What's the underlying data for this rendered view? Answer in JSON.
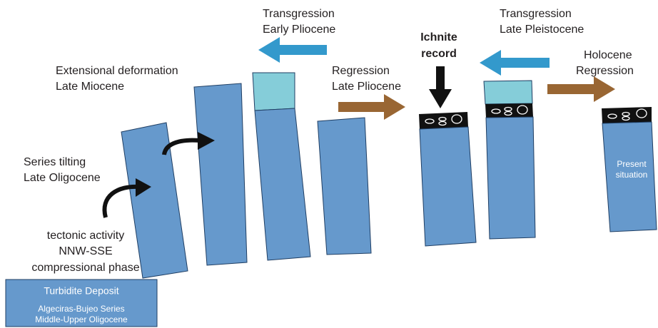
{
  "base_deposit": {
    "title": "Turbidite Deposit",
    "lines": [
      "Algeciras-Bujeo Series",
      "Middle-Upper Oligocene"
    ]
  },
  "stages": [
    {
      "lines": [
        "tectonic activity",
        "NNW-SSE",
        "compressional phase"
      ]
    },
    {
      "lines": [
        "Series tilting",
        "Late Oligocene"
      ]
    },
    {
      "lines": [
        "Extensional deformation",
        "Late Miocene"
      ]
    },
    {
      "lines": [
        "Transgression",
        "Early Pliocene"
      ]
    },
    {
      "lines": [
        "Regression",
        "Late Pliocene"
      ]
    },
    {
      "lines": [
        "Ichnite",
        "record"
      ]
    },
    {
      "lines": [
        "Transgression",
        "Late Pleistocene"
      ]
    },
    {
      "lines": [
        "Holocene",
        "Regression"
      ]
    }
  ],
  "present": {
    "lines": [
      "Present",
      "situation"
    ]
  }
}
